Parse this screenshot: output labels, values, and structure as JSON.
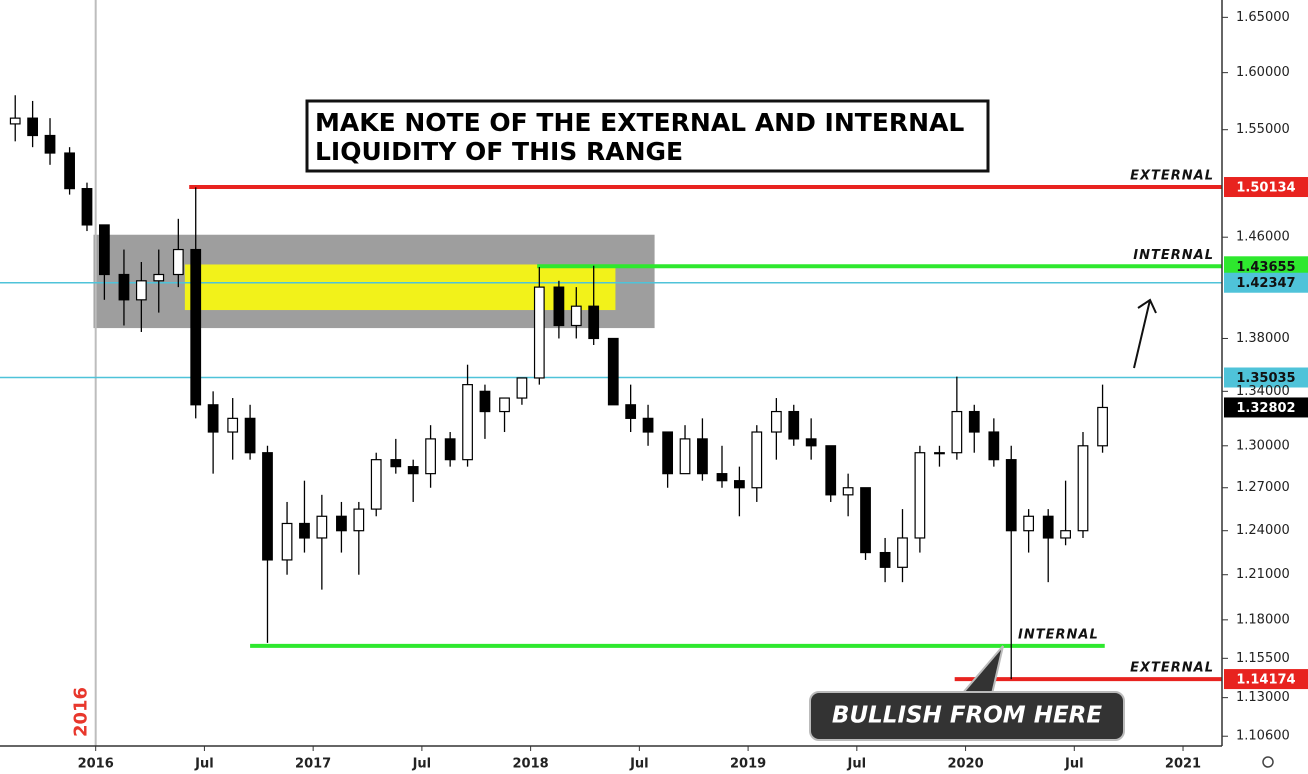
{
  "chart_data": {
    "type": "candlestick",
    "title_lines": [
      "MAKE NOTE OF THE EXTERNAL AND INTERNAL",
      "LIQUIDITY OF THIS RANGE"
    ],
    "callout": "BULLISH FROM HERE",
    "year_marker": {
      "label": "2016",
      "value": 2016.0,
      "color": "#e8372c"
    },
    "log_scale": true,
    "up_color": "#ffffff",
    "down_color": "#000000",
    "last_price_color": "#000000",
    "xlim": [
      2015.56,
      2021.17
    ],
    "ylim": [
      1.1,
      1.666
    ],
    "xticks": [
      {
        "value": 2016.0,
        "label": "2016"
      },
      {
        "value": 2016.5,
        "label": "Jul"
      },
      {
        "value": 2017.0,
        "label": "2017"
      },
      {
        "value": 2017.5,
        "label": "Jul"
      },
      {
        "value": 2018.0,
        "label": "2018"
      },
      {
        "value": 2018.5,
        "label": "Jul"
      },
      {
        "value": 2019.0,
        "label": "2019"
      },
      {
        "value": 2019.5,
        "label": "Jul"
      },
      {
        "value": 2020.0,
        "label": "2020"
      },
      {
        "value": 2020.5,
        "label": "Jul"
      },
      {
        "value": 2021.0,
        "label": "2021"
      }
    ],
    "yticks": [
      {
        "value": 1.65,
        "label": "1.65000"
      },
      {
        "value": 1.6,
        "label": "1.60000"
      },
      {
        "value": 1.55,
        "label": "1.55000"
      },
      {
        "value": 1.46,
        "label": "1.46000"
      },
      {
        "value": 1.38,
        "label": "1.38000"
      },
      {
        "value": 1.34,
        "label": "1.34000"
      },
      {
        "value": 1.3,
        "label": "1.30000"
      },
      {
        "value": 1.27,
        "label": "1.27000"
      },
      {
        "value": 1.24,
        "label": "1.24000"
      },
      {
        "value": 1.21,
        "label": "1.21000"
      },
      {
        "value": 1.18,
        "label": "1.18000"
      },
      {
        "value": 1.155,
        "label": "1.15500"
      },
      {
        "value": 1.13,
        "label": "1.13000"
      },
      {
        "value": 1.106,
        "label": "1.10600"
      }
    ],
    "zones": [
      {
        "x": [
          2015.99,
          2018.57
        ],
        "y": [
          1.388,
          1.462
        ],
        "color": "#9e9e9e"
      },
      {
        "x": [
          2016.41,
          2018.39
        ],
        "y": [
          1.402,
          1.438
        ],
        "color": "#f2f21a"
      }
    ],
    "levels": [
      {
        "value": 1.50134,
        "color": "#e8231f",
        "x_start": 2016.43,
        "note": "EXTERNAL",
        "tag": true
      },
      {
        "value": 1.43655,
        "color": "#2ee82e",
        "x_start": 2018.03,
        "note": "INTERNAL",
        "tag": true
      },
      {
        "value": 1.42347,
        "color": "#4fc3d9",
        "tag": true
      },
      {
        "value": 1.35035,
        "color": "#4fc3d9",
        "tag": true
      },
      {
        "value": 1.163,
        "color": "#2ee82e",
        "x_start": 2016.71,
        "x_end": 2020.64,
        "note": "INTERNAL",
        "tag": false
      },
      {
        "value": 1.14174,
        "color": "#e8231f",
        "x_start": 2019.95,
        "note": "EXTERNAL",
        "tag": true
      }
    ],
    "x": [
      2015.63,
      2015.71,
      2015.79,
      2015.88,
      2015.96,
      2016.04,
      2016.13,
      2016.21,
      2016.29,
      2016.38,
      2016.46,
      2016.54,
      2016.63,
      2016.71,
      2016.79,
      2016.88,
      2016.96,
      2017.04,
      2017.13,
      2017.21,
      2017.29,
      2017.38,
      2017.46,
      2017.54,
      2017.63,
      2017.71,
      2017.79,
      2017.88,
      2017.96,
      2018.04,
      2018.13,
      2018.21,
      2018.29,
      2018.38,
      2018.46,
      2018.54,
      2018.63,
      2018.71,
      2018.79,
      2018.88,
      2018.96,
      2019.04,
      2019.13,
      2019.21,
      2019.29,
      2019.38,
      2019.46,
      2019.54,
      2019.63,
      2019.71,
      2019.79,
      2019.88,
      2019.96,
      2020.04,
      2020.13,
      2020.21,
      2020.29,
      2020.38,
      2020.46,
      2020.54,
      2020.63
    ],
    "open": [
      1.555,
      1.56,
      1.545,
      1.53,
      1.5,
      1.47,
      1.43,
      1.41,
      1.425,
      1.43,
      1.45,
      1.33,
      1.31,
      1.32,
      1.295,
      1.22,
      1.245,
      1.235,
      1.25,
      1.24,
      1.255,
      1.29,
      1.285,
      1.28,
      1.305,
      1.29,
      1.34,
      1.325,
      1.335,
      1.35,
      1.42,
      1.39,
      1.405,
      1.38,
      1.33,
      1.32,
      1.31,
      1.28,
      1.305,
      1.28,
      1.275,
      1.27,
      1.31,
      1.325,
      1.305,
      1.3,
      1.265,
      1.27,
      1.225,
      1.215,
      1.235,
      1.295,
      1.295,
      1.325,
      1.31,
      1.29,
      1.24,
      1.25,
      1.235,
      1.24,
      1.3
    ],
    "high": [
      1.58,
      1.575,
      1.56,
      1.535,
      1.505,
      1.47,
      1.45,
      1.44,
      1.45,
      1.475,
      1.501,
      1.34,
      1.335,
      1.33,
      1.3,
      1.26,
      1.275,
      1.265,
      1.26,
      1.26,
      1.295,
      1.305,
      1.29,
      1.315,
      1.31,
      1.36,
      1.345,
      1.335,
      1.35,
      1.436,
      1.425,
      1.42,
      1.437,
      1.38,
      1.345,
      1.33,
      1.31,
      1.315,
      1.32,
      1.3,
      1.285,
      1.315,
      1.335,
      1.33,
      1.32,
      1.3,
      1.28,
      1.27,
      1.235,
      1.255,
      1.3,
      1.3,
      1.351,
      1.33,
      1.32,
      1.3,
      1.255,
      1.255,
      1.275,
      1.31,
      1.345
    ],
    "low": [
      1.54,
      1.535,
      1.52,
      1.495,
      1.465,
      1.41,
      1.39,
      1.385,
      1.4,
      1.42,
      1.32,
      1.28,
      1.29,
      1.29,
      1.165,
      1.21,
      1.225,
      1.2,
      1.225,
      1.21,
      1.25,
      1.28,
      1.26,
      1.27,
      1.285,
      1.285,
      1.305,
      1.31,
      1.33,
      1.345,
      1.38,
      1.38,
      1.375,
      1.33,
      1.31,
      1.3,
      1.27,
      1.28,
      1.275,
      1.27,
      1.25,
      1.26,
      1.29,
      1.3,
      1.29,
      1.26,
      1.25,
      1.22,
      1.205,
      1.205,
      1.225,
      1.285,
      1.29,
      1.295,
      1.285,
      1.1417,
      1.225,
      1.205,
      1.23,
      1.235,
      1.295
    ],
    "close": [
      1.56,
      1.545,
      1.53,
      1.5,
      1.47,
      1.43,
      1.41,
      1.425,
      1.43,
      1.45,
      1.33,
      1.31,
      1.32,
      1.295,
      1.22,
      1.245,
      1.235,
      1.25,
      1.24,
      1.255,
      1.29,
      1.285,
      1.28,
      1.305,
      1.29,
      1.345,
      1.325,
      1.335,
      1.35,
      1.42,
      1.39,
      1.405,
      1.38,
      1.33,
      1.32,
      1.31,
      1.28,
      1.305,
      1.28,
      1.275,
      1.27,
      1.31,
      1.325,
      1.305,
      1.3,
      1.265,
      1.27,
      1.225,
      1.215,
      1.235,
      1.295,
      1.295,
      1.325,
      1.31,
      1.29,
      1.24,
      1.25,
      1.235,
      1.24,
      1.3,
      1.32802
    ]
  }
}
